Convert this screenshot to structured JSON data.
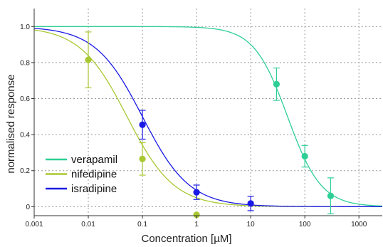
{
  "chart_data": {
    "type": "line",
    "title": "",
    "xlabel": "Concentration [µM]",
    "ylabel": "normalised response",
    "xscale": "log",
    "xlim": [
      0.001,
      2700
    ],
    "ylim": [
      -0.05,
      1.1
    ],
    "x_ticks": [
      "0.001",
      "0.01",
      "0.1",
      "1",
      "10",
      "100",
      "1000"
    ],
    "y_ticks": [
      "1.0",
      "0.8",
      "0.6",
      "0.4",
      "0.2",
      "0"
    ],
    "grid": "dashed",
    "legend_position": "bottom-left",
    "series": [
      {
        "name": "verapamil",
        "color": "#2ecf96",
        "fit": {
          "ic50": 48,
          "hill": 1.4
        },
        "points": [
          {
            "x": 30,
            "y": 0.68,
            "err": 0.09
          },
          {
            "x": 100,
            "y": 0.28,
            "err": 0.06
          },
          {
            "x": 300,
            "y": 0.06,
            "err": 0.1
          }
        ]
      },
      {
        "name": "nifedipine",
        "color": "#a8c832",
        "fit": {
          "ic50": 0.052,
          "hill": 1.0
        },
        "points": [
          {
            "x": 0.01,
            "y": 0.815,
            "err": 0.155
          },
          {
            "x": 0.1,
            "y": 0.265,
            "err": 0.09
          },
          {
            "x": 1,
            "y": -0.045,
            "err": 0
          }
        ]
      },
      {
        "name": "isradipine",
        "color": "#1a1ae6",
        "fit": {
          "ic50": 0.1,
          "hill": 1.0
        },
        "points": [
          {
            "x": 0.1,
            "y": 0.455,
            "err": 0.08
          },
          {
            "x": 1,
            "y": 0.08,
            "err": 0.04
          },
          {
            "x": 10,
            "y": 0.018,
            "err": 0.04
          }
        ]
      }
    ]
  }
}
